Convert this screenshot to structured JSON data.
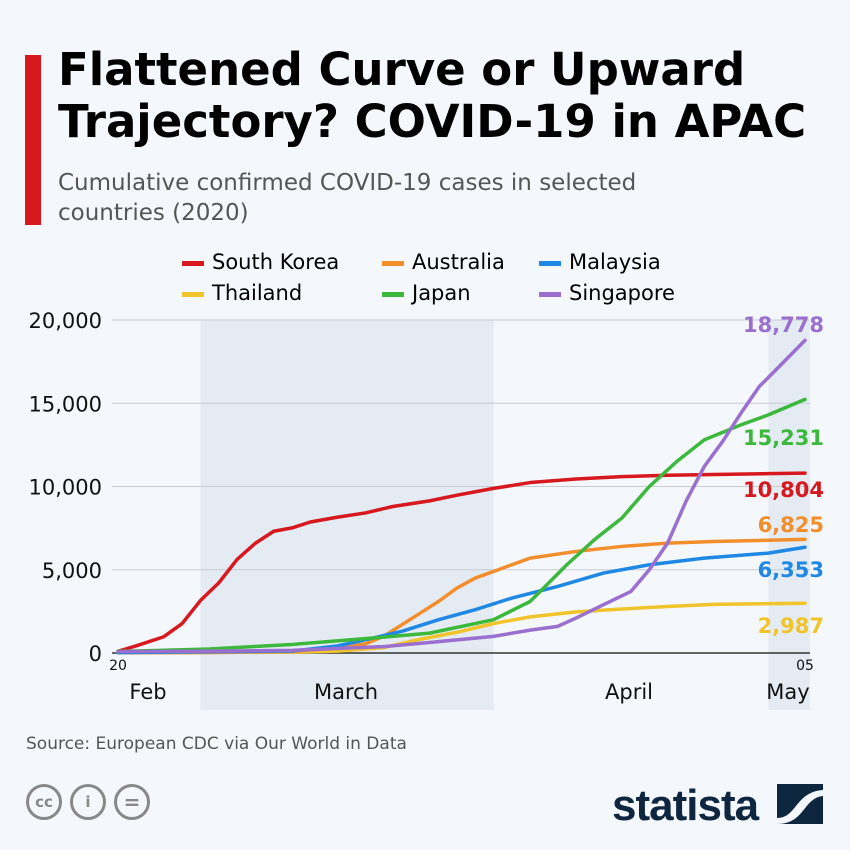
{
  "title": "Flattened Curve or Upward Trajectory? COVID-19 in APAC",
  "subtitle": "Cumulative confirmed COVID-19 cases in selected countries (2020)",
  "source": "Source: European CDC via Our World in Data",
  "brand": "statista",
  "license_icons": [
    "cc-icon",
    "attribution-icon",
    "no-derivatives-icon"
  ],
  "chart_data": {
    "type": "line",
    "title": "Flattened Curve or Upward Trajectory? COVID-19 in APAC",
    "xlim": [
      "2020-02-20",
      "2020-05-05"
    ],
    "ylim": [
      0,
      20000
    ],
    "grid": true,
    "legend_placement": "top",
    "yticks": [
      "0",
      "5,000",
      "10,000",
      "15,000",
      "20,000"
    ],
    "ytick_values": [
      0,
      5000,
      10000,
      15000,
      20000
    ],
    "xtick_day_labels": [
      {
        "date": "2020-02-20",
        "label": "20"
      },
      {
        "date": "2020-05-05",
        "label": "05"
      }
    ],
    "month_labels": [
      "Feb",
      "March",
      "April",
      "May"
    ],
    "series": [
      {
        "name": "South Korea",
        "color": "#d7191f",
        "end_label": "10,804",
        "points": [
          [
            "2020-02-20",
            104
          ],
          [
            "2020-02-22",
            433
          ],
          [
            "2020-02-25",
            977
          ],
          [
            "2020-02-27",
            1766
          ],
          [
            "2020-02-29",
            3150
          ],
          [
            "2020-03-02",
            4212
          ],
          [
            "2020-03-04",
            5621
          ],
          [
            "2020-03-06",
            6593
          ],
          [
            "2020-03-08",
            7313
          ],
          [
            "2020-03-10",
            7513
          ],
          [
            "2020-03-12",
            7869
          ],
          [
            "2020-03-15",
            8162
          ],
          [
            "2020-03-18",
            8413
          ],
          [
            "2020-03-21",
            8799
          ],
          [
            "2020-03-25",
            9137
          ],
          [
            "2020-03-28",
            9478
          ],
          [
            "2020-04-01",
            9887
          ],
          [
            "2020-04-05",
            10237
          ],
          [
            "2020-04-10",
            10450
          ],
          [
            "2020-04-15",
            10591
          ],
          [
            "2020-04-20",
            10674
          ],
          [
            "2020-04-25",
            10718
          ],
          [
            "2020-05-01",
            10774
          ],
          [
            "2020-05-05",
            10804
          ]
        ]
      },
      {
        "name": "Australia",
        "color": "#f28e2b",
        "end_label": "6,825",
        "points": [
          [
            "2020-02-20",
            15
          ],
          [
            "2020-03-01",
            26
          ],
          [
            "2020-03-10",
            100
          ],
          [
            "2020-03-15",
            300
          ],
          [
            "2020-03-18",
            550
          ],
          [
            "2020-03-20",
            1000
          ],
          [
            "2020-03-22",
            1700
          ],
          [
            "2020-03-24",
            2400
          ],
          [
            "2020-03-26",
            3100
          ],
          [
            "2020-03-28",
            3900
          ],
          [
            "2020-03-30",
            4500
          ],
          [
            "2020-04-02",
            5100
          ],
          [
            "2020-04-05",
            5700
          ],
          [
            "2020-04-10",
            6100
          ],
          [
            "2020-04-15",
            6400
          ],
          [
            "2020-04-20",
            6600
          ],
          [
            "2020-04-25",
            6700
          ],
          [
            "2020-05-05",
            6825
          ]
        ]
      },
      {
        "name": "Malaysia",
        "color": "#1f88e5",
        "end_label": "6,353",
        "points": [
          [
            "2020-02-20",
            22
          ],
          [
            "2020-03-10",
            117
          ],
          [
            "2020-03-15",
            428
          ],
          [
            "2020-03-18",
            790
          ],
          [
            "2020-03-22",
            1300
          ],
          [
            "2020-03-26",
            2000
          ],
          [
            "2020-03-30",
            2600
          ],
          [
            "2020-04-03",
            3300
          ],
          [
            "2020-04-08",
            4000
          ],
          [
            "2020-04-13",
            4800
          ],
          [
            "2020-04-18",
            5300
          ],
          [
            "2020-04-24",
            5700
          ],
          [
            "2020-05-01",
            6000
          ],
          [
            "2020-05-05",
            6353
          ]
        ]
      },
      {
        "name": "Thailand",
        "color": "#f2c42b",
        "end_label": "2,987",
        "points": [
          [
            "2020-02-20",
            35
          ],
          [
            "2020-03-10",
            53
          ],
          [
            "2020-03-15",
            114
          ],
          [
            "2020-03-20",
            322
          ],
          [
            "2020-03-24",
            827
          ],
          [
            "2020-03-28",
            1245
          ],
          [
            "2020-04-01",
            1771
          ],
          [
            "2020-04-05",
            2169
          ],
          [
            "2020-04-10",
            2473
          ],
          [
            "2020-04-15",
            2643
          ],
          [
            "2020-04-20",
            2792
          ],
          [
            "2020-04-25",
            2922
          ],
          [
            "2020-05-05",
            2987
          ]
        ]
      },
      {
        "name": "Japan",
        "color": "#3cb83c",
        "end_label": "15,231",
        "points": [
          [
            "2020-02-20",
            94
          ],
          [
            "2020-03-01",
            239
          ],
          [
            "2020-03-10",
            514
          ],
          [
            "2020-03-20",
            950
          ],
          [
            "2020-03-25",
            1193
          ],
          [
            "2020-04-01",
            2000
          ],
          [
            "2020-04-05",
            3100
          ],
          [
            "2020-04-09",
            5300
          ],
          [
            "2020-04-12",
            6800
          ],
          [
            "2020-04-15",
            8100
          ],
          [
            "2020-04-18",
            10000
          ],
          [
            "2020-04-21",
            11500
          ],
          [
            "2020-04-24",
            12800
          ],
          [
            "2020-04-28",
            13700
          ],
          [
            "2020-05-01",
            14300
          ],
          [
            "2020-05-05",
            15231
          ]
        ]
      },
      {
        "name": "Singapore",
        "color": "#9a6fd0",
        "end_label": "18,778",
        "points": [
          [
            "2020-02-20",
            85
          ],
          [
            "2020-03-01",
            102
          ],
          [
            "2020-03-10",
            160
          ],
          [
            "2020-03-20",
            385
          ],
          [
            "2020-03-25",
            631
          ],
          [
            "2020-04-01",
            1000
          ],
          [
            "2020-04-05",
            1375
          ],
          [
            "2020-04-08",
            1600
          ],
          [
            "2020-04-10",
            2100
          ],
          [
            "2020-04-13",
            2900
          ],
          [
            "2020-04-16",
            3700
          ],
          [
            "2020-04-18",
            5000
          ],
          [
            "2020-04-20",
            6600
          ],
          [
            "2020-04-22",
            9100
          ],
          [
            "2020-04-24",
            11200
          ],
          [
            "2020-04-26",
            12700
          ],
          [
            "2020-04-28",
            14400
          ],
          [
            "2020-04-30",
            16000
          ],
          [
            "2020-05-02",
            17100
          ],
          [
            "2020-05-05",
            18778
          ]
        ]
      }
    ]
  }
}
